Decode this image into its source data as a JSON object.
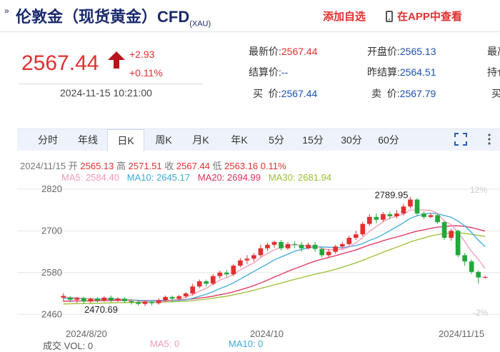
{
  "header": {
    "title": "伦敦金（现货黄金）CFD",
    "title_sub": "(XAU)",
    "add_label": "添加自选",
    "app_label": "在APP中查看"
  },
  "quote": {
    "price": "2567.44",
    "change": "+2.93",
    "change_pct": "+0.11%",
    "time": "2024-11-15 10:21:00",
    "fields": [
      {
        "label": "最新价:",
        "value": "2567.44",
        "red": true
      },
      {
        "label": "开盘价:",
        "value": "2565.13",
        "red": false
      },
      {
        "label": "最高",
        "value": "",
        "red": false
      },
      {
        "label": "结算价:",
        "value": "--",
        "red": false
      },
      {
        "label": "昨结算:",
        "value": "2564.51",
        "red": false
      },
      {
        "label": "持仓",
        "value": "",
        "red": false
      },
      {
        "label": "买  价:",
        "value": "2567.44",
        "red": false
      },
      {
        "label": "卖  价:",
        "value": "2567.79",
        "red": false
      },
      {
        "label": "买",
        "value": "",
        "red": false
      }
    ]
  },
  "tabs": [
    "分时",
    "年线",
    "日K",
    "周K",
    "月K",
    "年K",
    "5分",
    "15分",
    "30分",
    "60分"
  ],
  "active_tab": "日K",
  "ohlc_line": {
    "date": "2024/11/15",
    "open_label": "开",
    "open": "2565.13",
    "high_label": "高",
    "high": "2571.51",
    "close_label": "收",
    "close": "2567.44",
    "low_label": "低",
    "low": "2563.16",
    "pct": "0.11%"
  },
  "ma_values": {
    "ma5": "MA5: 2584.40",
    "ma10": "MA10: 2645.17",
    "ma20": "MA20: 2694.99",
    "ma30": "MA30: 2681.94"
  },
  "chart_data": {
    "type": "candlestick",
    "ylim": [
      2440,
      2830
    ],
    "y_ticks": [
      "2820",
      "2700",
      "2580",
      "2460"
    ],
    "pct_ticks": [
      "12%",
      "-2%"
    ],
    "x_labels": [
      "2024/8/20",
      "2024/10",
      "2024/11/15"
    ],
    "annotations": {
      "high": "2789.95",
      "low": "2470.69"
    },
    "colors": {
      "up": "#e03030",
      "down": "#22a83a",
      "ma5": "#f09ab4",
      "ma10": "#3fa9df",
      "ma20": "#e0305c",
      "ma30": "#9bbd33"
    },
    "candles": [
      [
        2508,
        2513,
        2496,
        2521
      ],
      [
        2508,
        2502,
        2495,
        2512
      ],
      [
        2502,
        2507,
        2493,
        2510
      ],
      [
        2507,
        2497,
        2490,
        2510
      ],
      [
        2497,
        2505,
        2492,
        2508
      ],
      [
        2505,
        2500,
        2494,
        2510
      ],
      [
        2500,
        2508,
        2496,
        2512
      ],
      [
        2508,
        2500,
        2495,
        2514
      ],
      [
        2500,
        2505,
        2496,
        2509
      ],
      [
        2505,
        2498,
        2493,
        2508
      ],
      [
        2498,
        2495,
        2488,
        2502
      ],
      [
        2495,
        2490,
        2485,
        2500
      ],
      [
        2490,
        2496,
        2484,
        2500
      ],
      [
        2496,
        2492,
        2486,
        2500
      ],
      [
        2492,
        2500,
        2488,
        2506
      ],
      [
        2500,
        2510,
        2496,
        2514
      ],
      [
        2510,
        2505,
        2498,
        2514
      ],
      [
        2505,
        2512,
        2500,
        2516
      ],
      [
        2512,
        2520,
        2506,
        2524
      ],
      [
        2520,
        2540,
        2514,
        2548
      ],
      [
        2540,
        2555,
        2535,
        2560
      ],
      [
        2555,
        2548,
        2540,
        2560
      ],
      [
        2548,
        2570,
        2544,
        2576
      ],
      [
        2570,
        2580,
        2563,
        2586
      ],
      [
        2580,
        2575,
        2568,
        2588
      ],
      [
        2575,
        2600,
        2570,
        2605
      ],
      [
        2600,
        2615,
        2595,
        2622
      ],
      [
        2615,
        2620,
        2605,
        2630
      ],
      [
        2620,
        2630,
        2612,
        2636
      ],
      [
        2630,
        2650,
        2625,
        2660
      ],
      [
        2650,
        2660,
        2642,
        2666
      ],
      [
        2660,
        2668,
        2652,
        2672
      ],
      [
        2668,
        2650,
        2644,
        2674
      ],
      [
        2650,
        2662,
        2645,
        2668
      ],
      [
        2662,
        2660,
        2650,
        2670
      ],
      [
        2660,
        2650,
        2640,
        2668
      ],
      [
        2650,
        2660,
        2646,
        2666
      ],
      [
        2660,
        2648,
        2640,
        2668
      ],
      [
        2648,
        2630,
        2624,
        2652
      ],
      [
        2630,
        2640,
        2625,
        2648
      ],
      [
        2640,
        2655,
        2634,
        2660
      ],
      [
        2655,
        2662,
        2648,
        2668
      ],
      [
        2662,
        2680,
        2656,
        2686
      ],
      [
        2680,
        2690,
        2674,
        2700
      ],
      [
        2690,
        2720,
        2684,
        2726
      ],
      [
        2720,
        2740,
        2714,
        2748
      ],
      [
        2740,
        2732,
        2722,
        2750
      ],
      [
        2732,
        2748,
        2726,
        2754
      ],
      [
        2748,
        2742,
        2734,
        2756
      ],
      [
        2742,
        2750,
        2736,
        2760
      ],
      [
        2750,
        2770,
        2744,
        2778
      ],
      [
        2770,
        2790,
        2764,
        2798
      ],
      [
        2790,
        2750,
        2744,
        2794
      ],
      [
        2750,
        2740,
        2734,
        2756
      ],
      [
        2740,
        2745,
        2736,
        2752
      ],
      [
        2745,
        2725,
        2720,
        2750
      ],
      [
        2725,
        2680,
        2674,
        2728
      ],
      [
        2680,
        2700,
        2672,
        2706
      ],
      [
        2700,
        2630,
        2624,
        2704
      ],
      [
        2630,
        2612,
        2600,
        2636
      ],
      [
        2612,
        2582,
        2576,
        2618
      ],
      [
        2582,
        2566,
        2548,
        2586
      ],
      [
        2565.13,
        2567.44,
        2563.16,
        2571.51
      ]
    ]
  },
  "volume_line": {
    "vol": "成交  VOL: 0",
    "ma5": "MA5: 0",
    "ma10": "MA10: 0"
  }
}
